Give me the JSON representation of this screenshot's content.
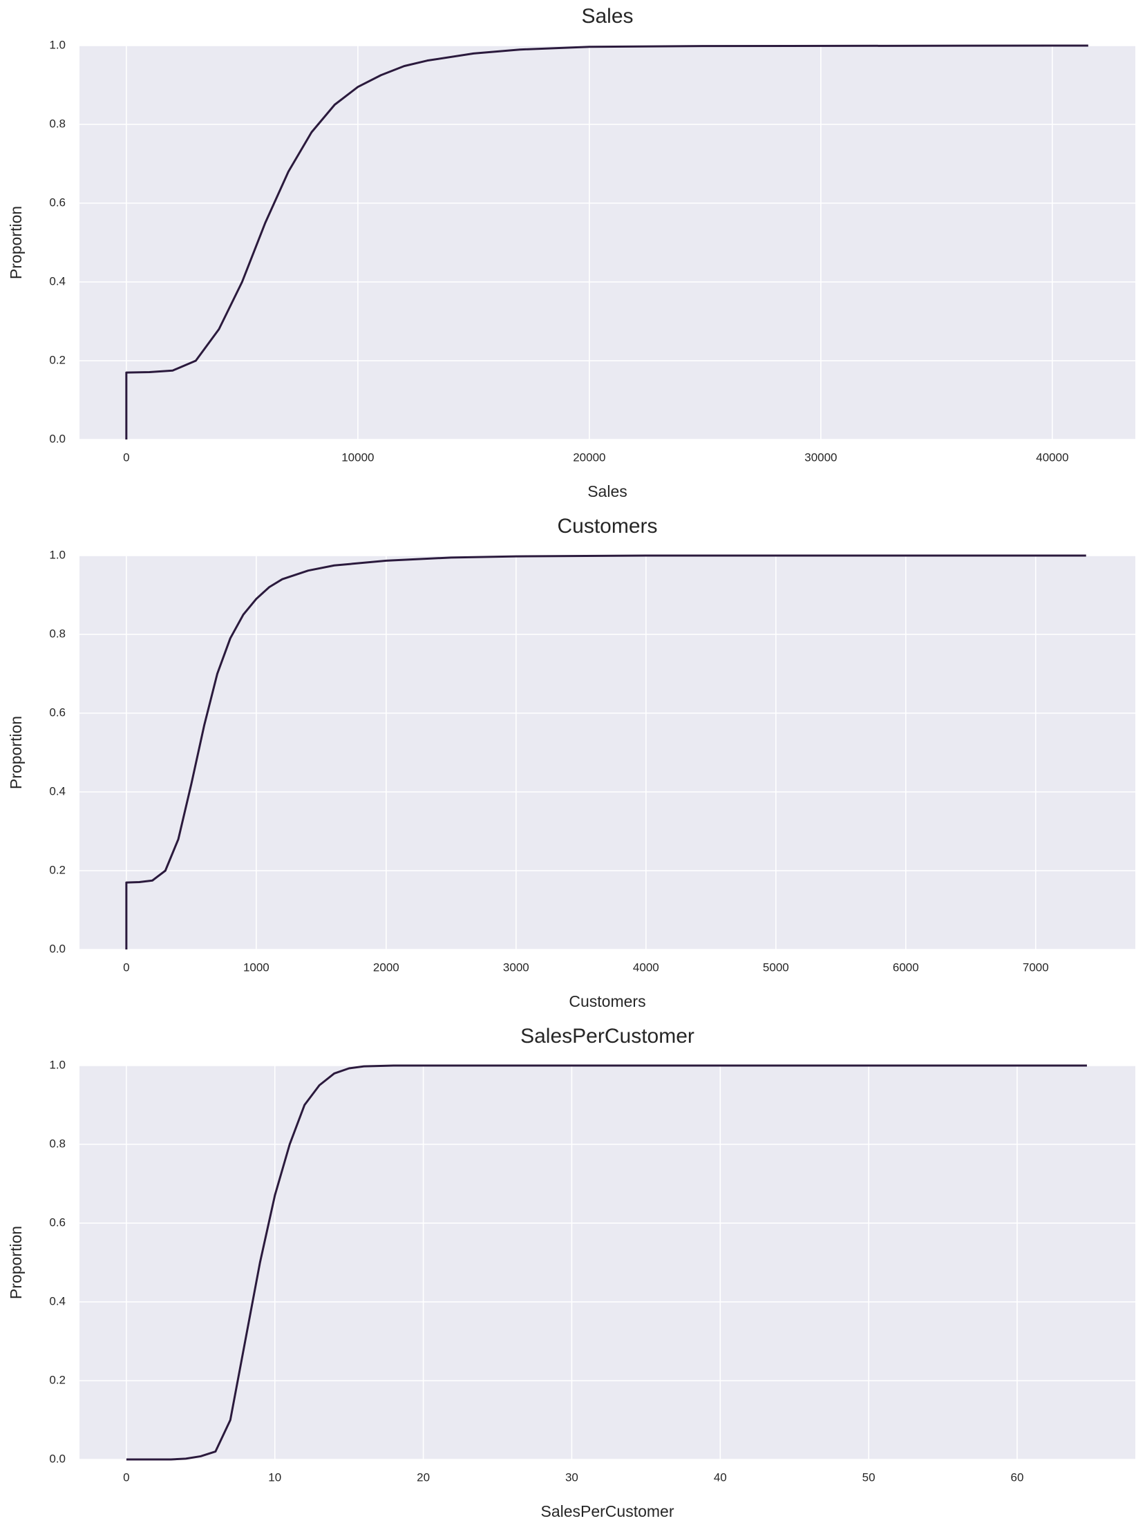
{
  "chart_data": [
    {
      "type": "line",
      "title": "Sales",
      "xlabel": "Sales",
      "ylabel": "Proportion",
      "color": "#2b1a3d",
      "background": "#eaeaf2",
      "grid": true,
      "x": [
        0,
        0,
        1000,
        2000,
        3000,
        4000,
        5000,
        6000,
        7000,
        8000,
        9000,
        10000,
        11000,
        12000,
        13000,
        15000,
        17000,
        20000,
        25000,
        41551
      ],
      "values": [
        0,
        0.17,
        0.171,
        0.175,
        0.2,
        0.28,
        0.4,
        0.55,
        0.68,
        0.78,
        0.85,
        0.895,
        0.925,
        0.948,
        0.962,
        0.98,
        0.99,
        0.997,
        0.999,
        1.0
      ],
      "xlim": [
        -2025,
        43585
      ],
      "xticks": [
        0,
        10000,
        20000,
        30000,
        40000
      ],
      "ylim": [
        0,
        1
      ],
      "yticks": [
        {
          "value": 0,
          "label": "0.0"
        },
        0.2,
        0.4,
        0.6,
        0.8,
        {
          "value": 1,
          "label": "1.0"
        }
      ]
    },
    {
      "type": "line",
      "title": "Customers",
      "xlabel": "Customers",
      "ylabel": "Proportion",
      "color": "#2b1a3d",
      "background": "#eaeaf2",
      "grid": true,
      "x": [
        0,
        0,
        100,
        200,
        300,
        400,
        500,
        600,
        700,
        800,
        900,
        1000,
        1100,
        1200,
        1400,
        1600,
        2000,
        2500,
        3000,
        4000,
        7388
      ],
      "values": [
        0,
        0.17,
        0.171,
        0.175,
        0.2,
        0.28,
        0.42,
        0.57,
        0.7,
        0.79,
        0.85,
        0.89,
        0.92,
        0.94,
        0.962,
        0.975,
        0.987,
        0.995,
        0.998,
        1.0,
        1.0
      ],
      "xlim": [
        -361,
        7767
      ],
      "xticks": [
        0,
        1000,
        2000,
        3000,
        4000,
        5000,
        6000,
        7000
      ],
      "ylim": [
        0,
        1
      ],
      "yticks": [
        {
          "value": 0,
          "label": "0.0"
        },
        0.2,
        0.4,
        0.6,
        0.8,
        {
          "value": 1,
          "label": "1.0"
        }
      ]
    },
    {
      "type": "line",
      "title": "SalesPerCustomer",
      "xlabel": "SalesPerCustomer",
      "ylabel": "Proportion",
      "color": "#2b1a3d",
      "background": "#eaeaf2",
      "grid": true,
      "x": [
        0,
        3,
        4,
        5,
        6,
        7,
        8,
        9,
        10,
        11,
        12,
        13,
        14,
        15,
        16,
        18,
        64.7
      ],
      "values": [
        0,
        0,
        0.002,
        0.008,
        0.02,
        0.1,
        0.3,
        0.5,
        0.67,
        0.8,
        0.9,
        0.95,
        0.98,
        0.993,
        0.998,
        1.0,
        1.0
      ],
      "xlim": [
        -3.16,
        67.96
      ],
      "xticks": [
        0,
        10,
        20,
        30,
        40,
        50,
        60
      ],
      "ylim": [
        0,
        1
      ],
      "yticks": [
        {
          "value": 0,
          "label": "0.0"
        },
        0.2,
        0.4,
        0.6,
        0.8,
        {
          "value": 1,
          "label": "1.0"
        }
      ]
    }
  ]
}
